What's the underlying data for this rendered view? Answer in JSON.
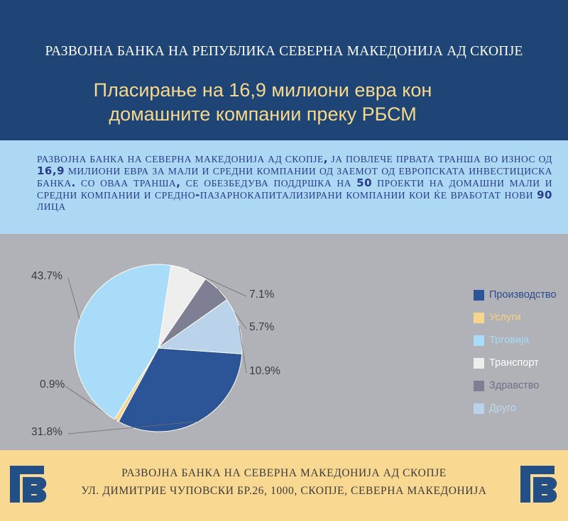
{
  "header": {
    "bank_name": "РАЗВОЈНА БАНКА НА РЕПУБЛИКА СЕВЕРНА МАКЕДОНИЈА АД СКОПЈЕ",
    "headline_line1": "Пласирање на 16,9 милиони евра кон",
    "headline_line2": "домашните компании преку РБСМ"
  },
  "info": {
    "part1": "РАЗВОЈНА БАНКА НА СЕВЕРНА МАКЕДОНИЈА АД СКОПЈЕ",
    "comma": ",",
    "part2": " ЈА ПОВЛЕЧЕ ПРВАТА ТРАНША ВО ИЗНОС ОД ",
    "amount": "16,9",
    "part3": " МИЛИОНИ ЕВРА ЗА МАЛИ И СРЕДНИ КОМПАНИИ ОД ЗАЕМОТ ОД ЕВРОПСКАТА ИНВЕСТИЦИСКА БАНКА",
    "dot": ".",
    "part4": " СО ОВАА ТРАНША",
    "comma2": ",",
    "part5": " СЕ ОБЕЗБЕДУВА ПОДДРШКА НА ",
    "projects": "50",
    "part6": " ПРОЕКТИ НА ДОМАШНИ МАЛИ И СРЕДНИ КОМПАНИИ И СРЕДНО",
    "hyphen": "-",
    "part7": "ПАЗАРНОКАПИТАЛИЗИРАНИ КОМПАНИИ КОИ ЌЕ ВРАБОТАТ НОВИ ",
    "jobs": "90",
    "part8": " ЛИЦА"
  },
  "chart_data": {
    "type": "pie",
    "categories": [
      "Производство",
      "Услуги",
      "Трговија",
      "Транспорт",
      "Здравство",
      "Друго"
    ],
    "values": [
      31.8,
      0.9,
      43.7,
      7.1,
      5.7,
      10.9
    ],
    "labels": [
      "31.8%",
      "0.9%",
      "43.7%",
      "7.1%",
      "5.7%",
      "10.9%"
    ],
    "colors": [
      "#2b5597",
      "#f6d68d",
      "#a9dcf8",
      "#eeeeef",
      "#7f7f94",
      "#bad3ea"
    ],
    "legend_text_colors": [
      "#2b4b8c",
      "#f4d27f",
      "#a6daf6",
      "#ffffff",
      "#6f6f87",
      "#bfd6ee"
    ],
    "label_color": "#3a3a3a",
    "legend_position": "right"
  },
  "footer": {
    "line1": "РАЗВОЈНА БАНКА НА СЕВЕРНА МАКЕДОНИЈА АД СКОПЈЕ",
    "line2": "УЛ. ДИМИТРИЕ ЧУПОВСКИ БР.26, 1000, СКОПЈЕ, СЕВЕРНА МАКЕДОНИЈА",
    "logo_color": "#224f86"
  }
}
